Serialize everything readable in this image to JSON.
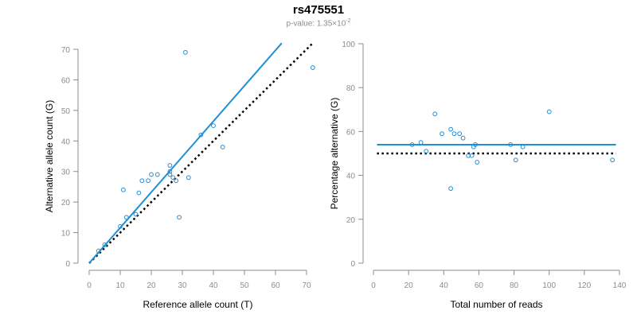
{
  "title": "rs475551",
  "subtitle": {
    "prefix": "p-value: 1.35×10",
    "exponent": "-2"
  },
  "colors": {
    "data": "#1f8fd6",
    "fit": "#1f8fd6",
    "reference": "#000000",
    "axis": "#8c8c8c"
  },
  "chart_data": [
    {
      "type": "scatter",
      "xlabel": "Reference allele count (T)",
      "ylabel": "Alternative allele count (G)",
      "xlim": [
        0,
        70
      ],
      "ylim": [
        0,
        70
      ],
      "xticks": [
        0,
        10,
        20,
        30,
        40,
        50,
        60,
        70
      ],
      "yticks": [
        0,
        10,
        20,
        30,
        40,
        50,
        60,
        70
      ],
      "points": [
        [
          3,
          4
        ],
        [
          5,
          6
        ],
        [
          10,
          12
        ],
        [
          11,
          24
        ],
        [
          12,
          15
        ],
        [
          15,
          16
        ],
        [
          16,
          23
        ],
        [
          17,
          27
        ],
        [
          19,
          27
        ],
        [
          20,
          29
        ],
        [
          22,
          29
        ],
        [
          26,
          30
        ],
        [
          26,
          29
        ],
        [
          26,
          32
        ],
        [
          27,
          28
        ],
        [
          28,
          27
        ],
        [
          29,
          15
        ],
        [
          31,
          69
        ],
        [
          32,
          28
        ],
        [
          36,
          42
        ],
        [
          40,
          45
        ],
        [
          43,
          38
        ],
        [
          72,
          64
        ]
      ],
      "fit_line": {
        "style": "solid",
        "from": [
          0,
          0
        ],
        "to": [
          62,
          72
        ]
      },
      "reference_line": {
        "style": "dotted",
        "from": [
          0,
          0
        ],
        "to": [
          72,
          72
        ]
      }
    },
    {
      "type": "scatter",
      "xlabel": "Total number of reads",
      "ylabel": "Percentage alternative (G)",
      "xlim": [
        0,
        140
      ],
      "ylim": [
        0,
        100
      ],
      "xticks": [
        0,
        20,
        40,
        60,
        80,
        100,
        120,
        140
      ],
      "yticks": [
        0,
        20,
        40,
        60,
        80,
        100
      ],
      "points": [
        [
          22,
          54
        ],
        [
          27,
          55
        ],
        [
          30,
          51
        ],
        [
          35,
          68
        ],
        [
          39,
          59
        ],
        [
          44,
          61
        ],
        [
          46,
          59
        ],
        [
          49,
          59
        ],
        [
          51,
          57
        ],
        [
          54,
          49
        ],
        [
          56,
          49
        ],
        [
          57,
          53
        ],
        [
          58,
          54
        ],
        [
          59,
          46
        ],
        [
          44,
          34
        ],
        [
          78,
          54
        ],
        [
          81,
          47
        ],
        [
          85,
          53
        ],
        [
          100,
          69
        ],
        [
          136,
          47
        ]
      ],
      "fit_line": {
        "style": "solid",
        "from": [
          2,
          54
        ],
        "to": [
          138,
          54
        ]
      },
      "reference_line": {
        "style": "dotted",
        "from": [
          2,
          50
        ],
        "to": [
          138,
          50
        ]
      }
    }
  ]
}
